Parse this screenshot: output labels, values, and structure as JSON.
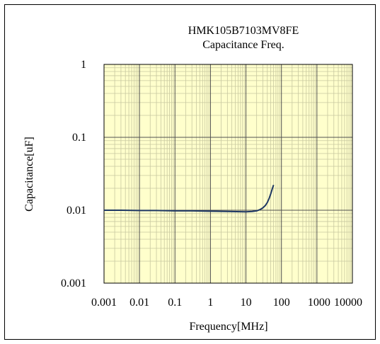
{
  "chart_data": {
    "type": "line",
    "title": "HMK105B7103MV8FE",
    "subtitle": "Capacitance Freq.",
    "xlabel": "Frequency[MHz]",
    "ylabel": "Capacitance[uF]",
    "x_scale": "log",
    "y_scale": "log",
    "xlim": [
      0.001,
      10000
    ],
    "ylim": [
      0.001,
      1
    ],
    "x_ticks": [
      0.001,
      0.01,
      0.1,
      1,
      10,
      100,
      1000,
      10000
    ],
    "x_tick_labels": [
      "0.001",
      "0.01",
      "0.1",
      "1",
      "10",
      "100",
      "1000",
      "10000"
    ],
    "y_ticks": [
      0.001,
      0.01,
      0.1,
      1
    ],
    "y_tick_labels": [
      "0.001",
      "0.01",
      "0.1",
      "1"
    ],
    "grid": true,
    "plot_background": "#ffffcc",
    "grid_color": "#c8c8a0",
    "major_grid_color": "#505050",
    "series": [
      {
        "color": "#1f3864",
        "x": [
          0.001,
          0.003,
          0.01,
          0.03,
          0.1,
          0.3,
          1,
          3,
          10,
          15,
          20,
          25,
          30,
          35,
          40,
          45,
          50,
          55,
          60
        ],
        "y": [
          0.01,
          0.01,
          0.0099,
          0.0099,
          0.0098,
          0.0098,
          0.0097,
          0.0096,
          0.0095,
          0.0096,
          0.0098,
          0.0102,
          0.0108,
          0.0116,
          0.0128,
          0.0145,
          0.0168,
          0.0195,
          0.0222
        ]
      }
    ]
  }
}
